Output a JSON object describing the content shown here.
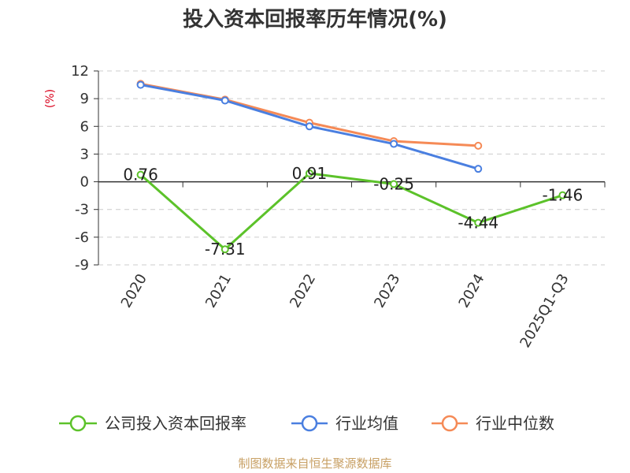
{
  "chart_data": {
    "type": "line",
    "title": "投入资本回报率历年情况(%)",
    "unit_label": "(%)",
    "categories": [
      "2020",
      "2021",
      "2022",
      "2023",
      "2024",
      "2025Q1-Q3"
    ],
    "ylim": [
      -9,
      12
    ],
    "yticks": [
      "12",
      "9",
      "6",
      "3",
      "0",
      "-3",
      "-6",
      "-9"
    ],
    "ytick_values": [
      12,
      9,
      6,
      3,
      0,
      -3,
      -6,
      -9
    ],
    "grid": true,
    "legend_position": "bottom",
    "series": [
      {
        "name": "公司投入资本回报率",
        "color": "#5cc22a",
        "values": [
          0.76,
          -7.31,
          0.91,
          -0.25,
          -4.44,
          -1.46
        ],
        "labels": [
          "0.76",
          "-7.31",
          "0.91",
          "-0.25",
          "-4.44",
          "-1.46"
        ]
      },
      {
        "name": "行业均值",
        "color": "#4a7fe0",
        "values": [
          10.5,
          8.8,
          6.0,
          4.1,
          1.4,
          null
        ]
      },
      {
        "name": "行业中位数",
        "color": "#f58a56",
        "values": [
          10.6,
          8.9,
          6.4,
          4.4,
          3.9,
          null
        ]
      }
    ]
  },
  "source": "制图数据来自恒生聚源数据库"
}
